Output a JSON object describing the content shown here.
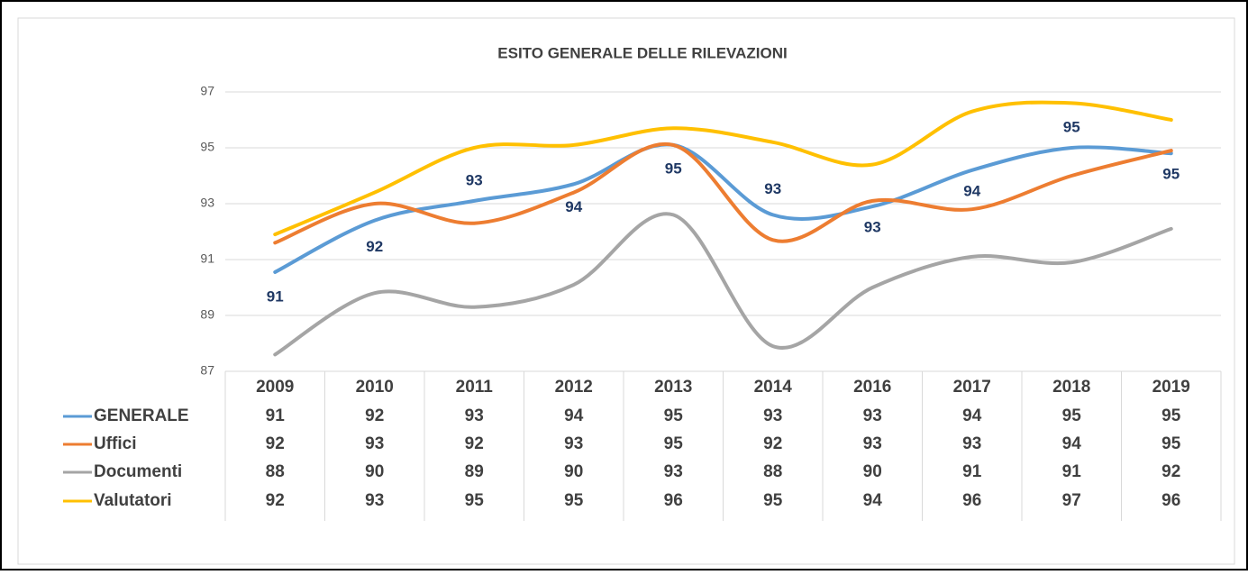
{
  "chart_data": {
    "type": "line",
    "title": "ESITO GENERALE DELLE RILEVAZIONI",
    "categories": [
      "2009",
      "2010",
      "2011",
      "2012",
      "2013",
      "2014",
      "2016",
      "2017",
      "2018",
      "2019"
    ],
    "ylim": [
      87,
      97
    ],
    "yticks": [
      87,
      89,
      91,
      93,
      95,
      97
    ],
    "grid": true,
    "series": [
      {
        "name": "GENERALE",
        "color": "#5b9bd5",
        "values": [
          90.55,
          92.4,
          93.1,
          93.7,
          95.1,
          92.6,
          92.9,
          94.2,
          95.0,
          94.8
        ],
        "value_labels": [
          "91",
          "92",
          "93",
          "94",
          "95",
          "93",
          "93",
          "94",
          "95",
          "95"
        ]
      },
      {
        "name": "Uffici",
        "color": "#ed7d31",
        "values": [
          91.6,
          93.0,
          92.3,
          93.4,
          95.1,
          91.7,
          93.1,
          92.8,
          94.0,
          94.9
        ],
        "value_labels": [
          "92",
          "93",
          "92",
          "93",
          "95",
          "92",
          "93",
          "93",
          "94",
          "95"
        ]
      },
      {
        "name": "Documenti",
        "color": "#a5a5a5",
        "values": [
          87.6,
          89.8,
          89.3,
          90.1,
          92.6,
          87.9,
          90.0,
          91.1,
          90.9,
          92.1
        ],
        "value_labels": [
          "88",
          "90",
          "89",
          "90",
          "93",
          "88",
          "90",
          "91",
          "91",
          "92"
        ]
      },
      {
        "name": "Valutatori",
        "color": "#ffc000",
        "values": [
          91.9,
          93.4,
          95.0,
          95.1,
          95.7,
          95.2,
          94.4,
          96.3,
          96.6,
          96.0
        ],
        "value_labels": [
          "92",
          "93",
          "95",
          "95",
          "96",
          "95",
          "94",
          "96",
          "97",
          "96"
        ]
      }
    ]
  }
}
